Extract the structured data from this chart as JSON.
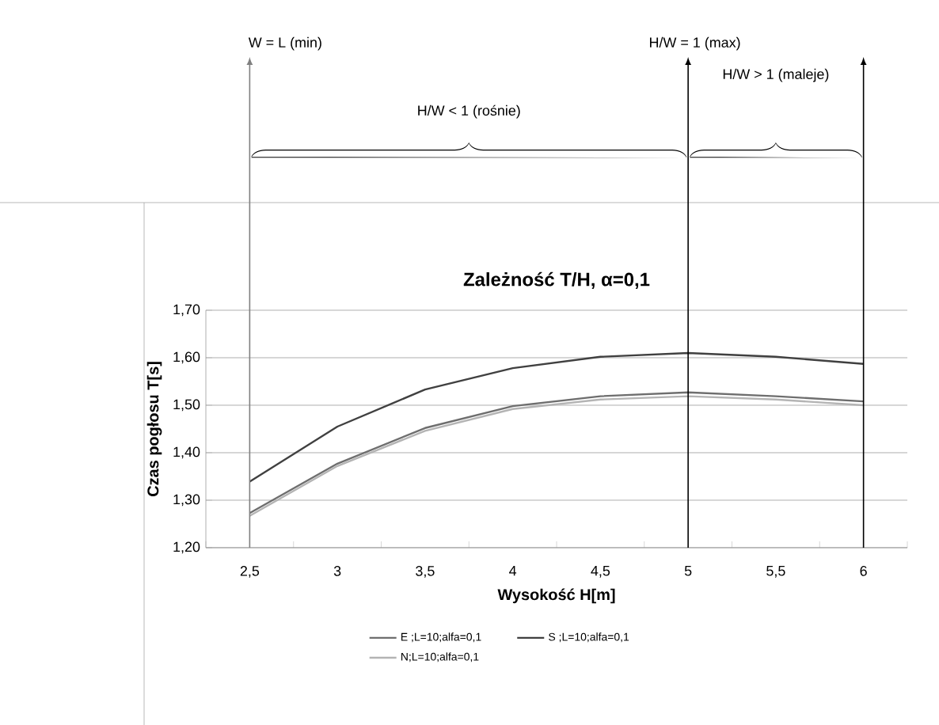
{
  "chart_data": {
    "type": "line",
    "title": "Zależność T/H, α=0,1",
    "xlabel": "Wysokość H[m]",
    "ylabel": "Czas pogłosu T[s]",
    "x": [
      2.5,
      3,
      3.5,
      4,
      4.5,
      5,
      5.5,
      6
    ],
    "series": [
      {
        "name": "E ;L=10;alfa=0,1",
        "color": "#6e6e6e",
        "values": [
          1.273,
          1.377,
          1.452,
          1.498,
          1.519,
          1.527,
          1.519,
          1.508
        ]
      },
      {
        "name": "S ;L=10;alfa=0,1",
        "color": "#404040",
        "values": [
          1.339,
          1.455,
          1.533,
          1.578,
          1.602,
          1.61,
          1.602,
          1.587
        ]
      },
      {
        "name": "N;L=10;alfa=0,1",
        "color": "#b4b4b4",
        "values": [
          1.267,
          1.372,
          1.446,
          1.492,
          1.512,
          1.519,
          1.512,
          1.5
        ]
      }
    ],
    "xlim": [
      2.25,
      6.25
    ],
    "xticks": [
      {
        "value": 2.5,
        "label": "2,5"
      },
      3,
      {
        "value": 3.5,
        "label": "3,5"
      },
      4,
      {
        "value": 4.5,
        "label": "4,5"
      },
      5,
      {
        "value": 5.5,
        "label": "5,5"
      },
      6
    ],
    "ylim": [
      1.2,
      1.7
    ],
    "yticks": [
      {
        "value": 1.2,
        "label": "1,20"
      },
      {
        "value": 1.3,
        "label": "1,30"
      },
      {
        "value": 1.4,
        "label": "1,40"
      },
      {
        "value": 1.5,
        "label": "1,50"
      },
      {
        "value": 1.6,
        "label": "1,60"
      },
      {
        "value": 1.7,
        "label": "1,70"
      }
    ],
    "grid": "y",
    "legend": "bottom",
    "marker": "none",
    "line_style": "solid",
    "ref_lines": [
      {
        "axis": "x",
        "value": 2.5,
        "color": "#808080"
      },
      {
        "axis": "x",
        "value": 5,
        "color": "#000000"
      },
      {
        "axis": "x",
        "value": 6,
        "color": "#000000"
      }
    ],
    "annotations": [
      "W = L (min)",
      "H/W = 1 (max)",
      "H/W < 1 (rośnie)",
      "H/W > 1 (maleje)"
    ]
  }
}
